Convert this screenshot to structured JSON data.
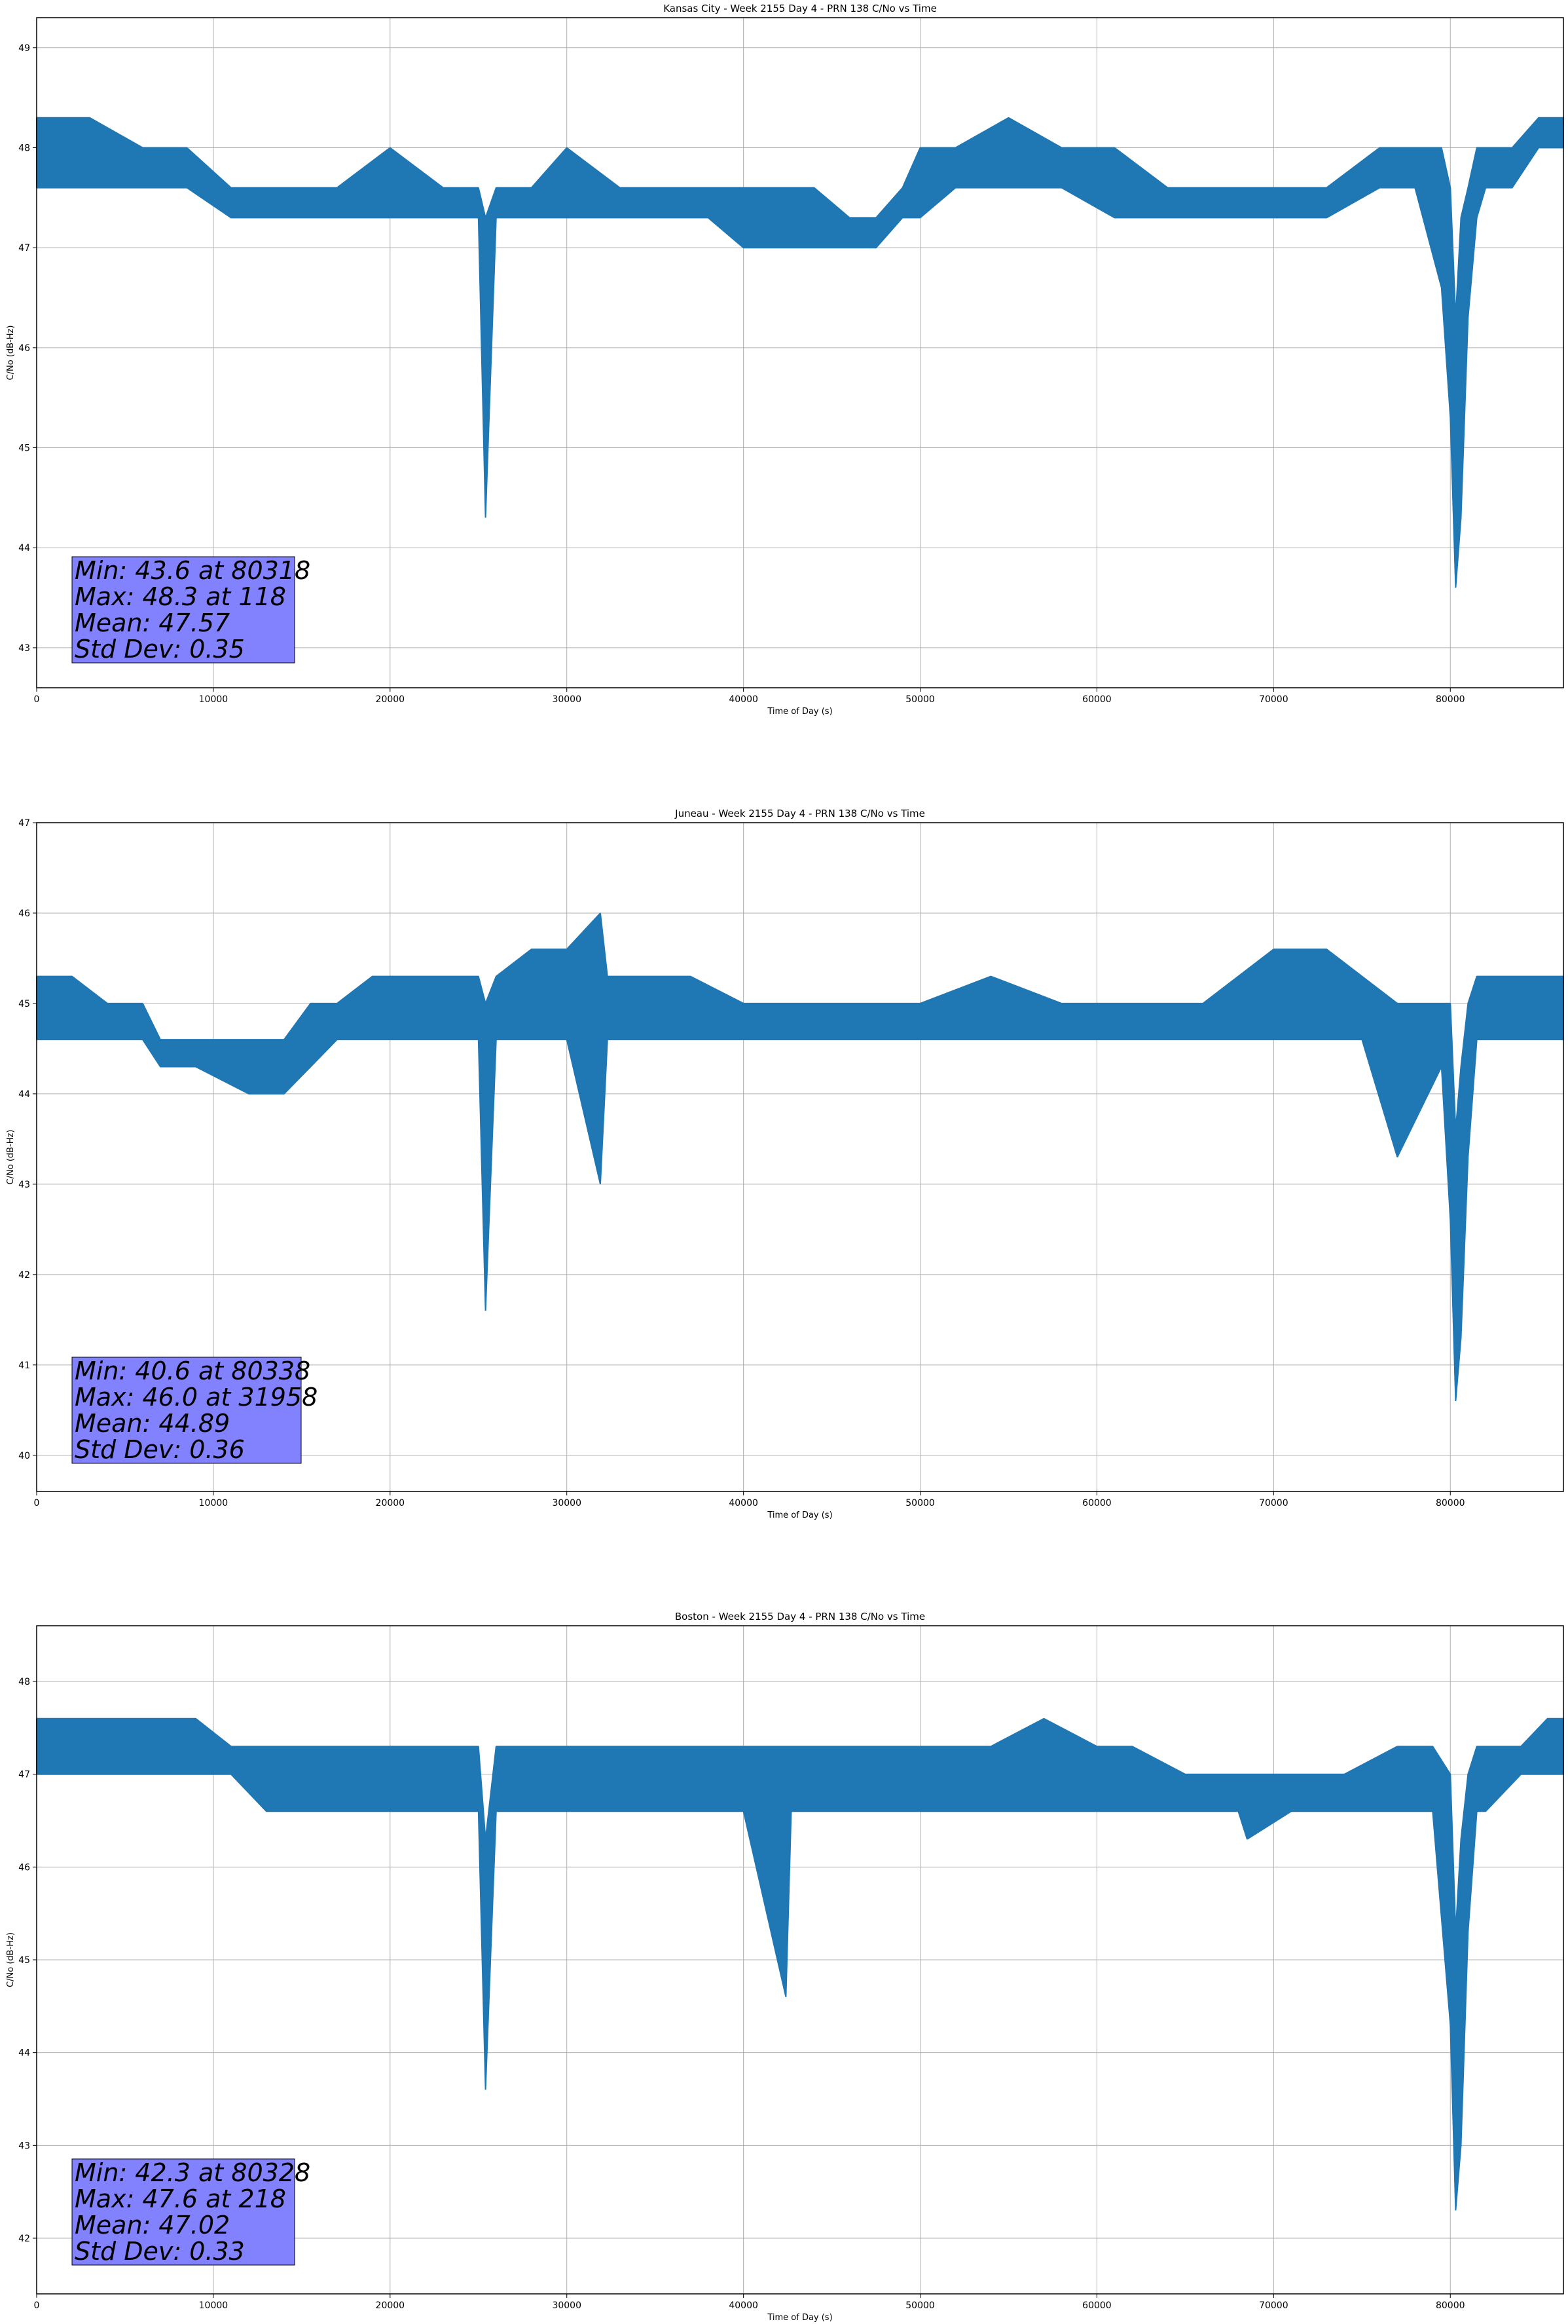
{
  "chart_data": [
    {
      "type": "line",
      "title": "Kansas City - Week 2155 Day 4 - PRN 138 C/No vs Time",
      "xlabel": "Time of Day (s)",
      "ylabel": "C/No (dB-Hz)",
      "xlim": [
        0,
        86400
      ],
      "ylim": [
        42.6,
        49.3
      ],
      "xticks": [
        0,
        10000,
        20000,
        30000,
        40000,
        50000,
        60000,
        70000,
        80000
      ],
      "yticks": [
        43,
        44,
        45,
        46,
        47,
        48,
        49
      ],
      "grid": true,
      "color": "#1f77b4",
      "stats_box_color": "#8080ff",
      "stats": [
        "Min: 43.6 at 80318",
        "Max: 48.3 at 118",
        "Mean: 47.57",
        "Std Dev: 0.35"
      ],
      "band_series": {
        "x": [
          0,
          3000,
          6000,
          8500,
          11000,
          14000,
          17000,
          20000,
          23000,
          25000,
          25400,
          26000,
          28000,
          30000,
          33000,
          36000,
          38000,
          40000,
          42000,
          44000,
          46000,
          47500,
          49000,
          50000,
          52000,
          55000,
          58000,
          61000,
          64000,
          67000,
          70000,
          73000,
          76000,
          78000,
          79500,
          80000,
          80300,
          80600,
          81000,
          81500,
          82000,
          83500,
          85000,
          86400
        ],
        "low": [
          47.6,
          47.6,
          47.6,
          47.6,
          47.3,
          47.3,
          47.3,
          47.3,
          47.3,
          47.3,
          44.3,
          47.3,
          47.3,
          47.3,
          47.3,
          47.3,
          47.3,
          47.0,
          47.0,
          47.0,
          47.0,
          47.0,
          47.3,
          47.3,
          47.6,
          47.6,
          47.6,
          47.3,
          47.3,
          47.3,
          47.3,
          47.3,
          47.6,
          47.6,
          46.6,
          45.3,
          43.6,
          44.3,
          46.3,
          47.3,
          47.6,
          47.6,
          48.0,
          48.0
        ],
        "high": [
          48.3,
          48.3,
          48.0,
          48.0,
          47.6,
          47.6,
          47.6,
          48.0,
          47.6,
          47.6,
          47.3,
          47.6,
          47.6,
          48.0,
          47.6,
          47.6,
          47.6,
          47.6,
          47.6,
          47.6,
          47.3,
          47.3,
          47.6,
          48.0,
          48.0,
          48.3,
          48.0,
          48.0,
          47.6,
          47.6,
          47.6,
          47.6,
          48.0,
          48.0,
          48.0,
          47.6,
          46.3,
          47.3,
          47.6,
          48.0,
          48.0,
          48.0,
          48.3,
          48.3
        ]
      }
    },
    {
      "type": "line",
      "title": "Juneau - Week 2155 Day 4 - PRN 138 C/No vs Time",
      "xlabel": "Time of Day (s)",
      "ylabel": "C/No (dB-Hz)",
      "xlim": [
        0,
        86400
      ],
      "ylim": [
        39.6,
        47.0
      ],
      "xticks": [
        0,
        10000,
        20000,
        30000,
        40000,
        50000,
        60000,
        70000,
        80000
      ],
      "yticks": [
        40,
        41,
        42,
        43,
        44,
        45,
        46,
        47
      ],
      "grid": true,
      "color": "#1f77b4",
      "stats_box_color": "#8080ff",
      "stats": [
        "Min: 40.6 at 80338",
        "Max: 46.0 at 31958",
        "Mean: 44.89",
        "Std Dev: 0.36"
      ],
      "band_series": {
        "x": [
          0,
          2000,
          4000,
          6000,
          7000,
          9000,
          12000,
          14000,
          15500,
          17000,
          19000,
          21000,
          23000,
          25000,
          25400,
          26000,
          28000,
          30000,
          31900,
          32300,
          34000,
          37000,
          40000,
          43000,
          46000,
          50000,
          54000,
          58000,
          62000,
          66000,
          70000,
          73000,
          75000,
          77000,
          79500,
          80000,
          80300,
          80600,
          81000,
          81500,
          82000,
          84000,
          86400
        ],
        "low": [
          44.6,
          44.6,
          44.6,
          44.6,
          44.3,
          44.3,
          44.0,
          44.0,
          44.3,
          44.6,
          44.6,
          44.6,
          44.6,
          44.6,
          41.6,
          44.6,
          44.6,
          44.6,
          43.0,
          44.6,
          44.6,
          44.6,
          44.6,
          44.6,
          44.6,
          44.6,
          44.6,
          44.6,
          44.6,
          44.6,
          44.6,
          44.6,
          44.6,
          43.3,
          44.3,
          42.6,
          40.6,
          41.3,
          43.3,
          44.6,
          44.6,
          44.6,
          44.6
        ],
        "high": [
          45.3,
          45.3,
          45.0,
          45.0,
          44.6,
          44.6,
          44.6,
          44.6,
          45.0,
          45.0,
          45.3,
          45.3,
          45.3,
          45.3,
          45.0,
          45.3,
          45.6,
          45.6,
          46.0,
          45.3,
          45.3,
          45.3,
          45.0,
          45.0,
          45.0,
          45.0,
          45.3,
          45.0,
          45.0,
          45.0,
          45.6,
          45.6,
          45.3,
          45.0,
          45.0,
          45.0,
          43.6,
          44.3,
          45.0,
          45.3,
          45.3,
          45.3,
          45.3
        ]
      }
    },
    {
      "type": "line",
      "title": "Boston - Week 2155 Day 4 - PRN 138 C/No vs Time",
      "xlabel": "Time of Day (s)",
      "ylabel": "C/No (dB-Hz)",
      "xlim": [
        0,
        86400
      ],
      "ylim": [
        41.4,
        48.6
      ],
      "xticks": [
        0,
        10000,
        20000,
        30000,
        40000,
        50000,
        60000,
        70000,
        80000
      ],
      "yticks": [
        42,
        43,
        44,
        45,
        46,
        47,
        48
      ],
      "grid": true,
      "color": "#1f77b4",
      "stats_box_color": "#8080ff",
      "stats": [
        "Min: 42.3 at 80328",
        "Max: 47.6 at 218",
        "Mean: 47.02",
        "Std Dev: 0.33"
      ],
      "band_series": {
        "x": [
          0,
          2000,
          5000,
          7500,
          9000,
          11000,
          13000,
          16000,
          19000,
          22000,
          25000,
          25400,
          26000,
          28000,
          31000,
          34000,
          37000,
          40000,
          42400,
          42700,
          43000,
          45000,
          48000,
          51000,
          54000,
          57000,
          60000,
          62000,
          65000,
          68000,
          68500,
          71000,
          74000,
          77000,
          79000,
          80000,
          80300,
          80600,
          81000,
          81500,
          82000,
          84000,
          85500,
          86400
        ],
        "low": [
          47.0,
          47.0,
          47.0,
          47.0,
          47.0,
          47.0,
          46.6,
          46.6,
          46.6,
          46.6,
          46.6,
          43.6,
          46.6,
          46.6,
          46.6,
          46.6,
          46.6,
          46.6,
          44.6,
          46.6,
          46.6,
          46.6,
          46.6,
          46.6,
          46.6,
          46.6,
          46.6,
          46.6,
          46.6,
          46.6,
          46.3,
          46.6,
          46.6,
          46.6,
          46.6,
          44.3,
          42.3,
          43.0,
          45.3,
          46.6,
          46.6,
          47.0,
          47.0,
          47.0
        ],
        "high": [
          47.6,
          47.6,
          47.6,
          47.6,
          47.6,
          47.3,
          47.3,
          47.3,
          47.3,
          47.3,
          47.3,
          46.3,
          47.3,
          47.3,
          47.3,
          47.3,
          47.3,
          47.3,
          47.3,
          47.3,
          47.3,
          47.3,
          47.3,
          47.3,
          47.3,
          47.6,
          47.3,
          47.3,
          47.0,
          47.0,
          47.0,
          47.0,
          47.0,
          47.3,
          47.3,
          47.0,
          45.3,
          46.3,
          47.0,
          47.3,
          47.3,
          47.3,
          47.6,
          47.6
        ]
      }
    }
  ]
}
